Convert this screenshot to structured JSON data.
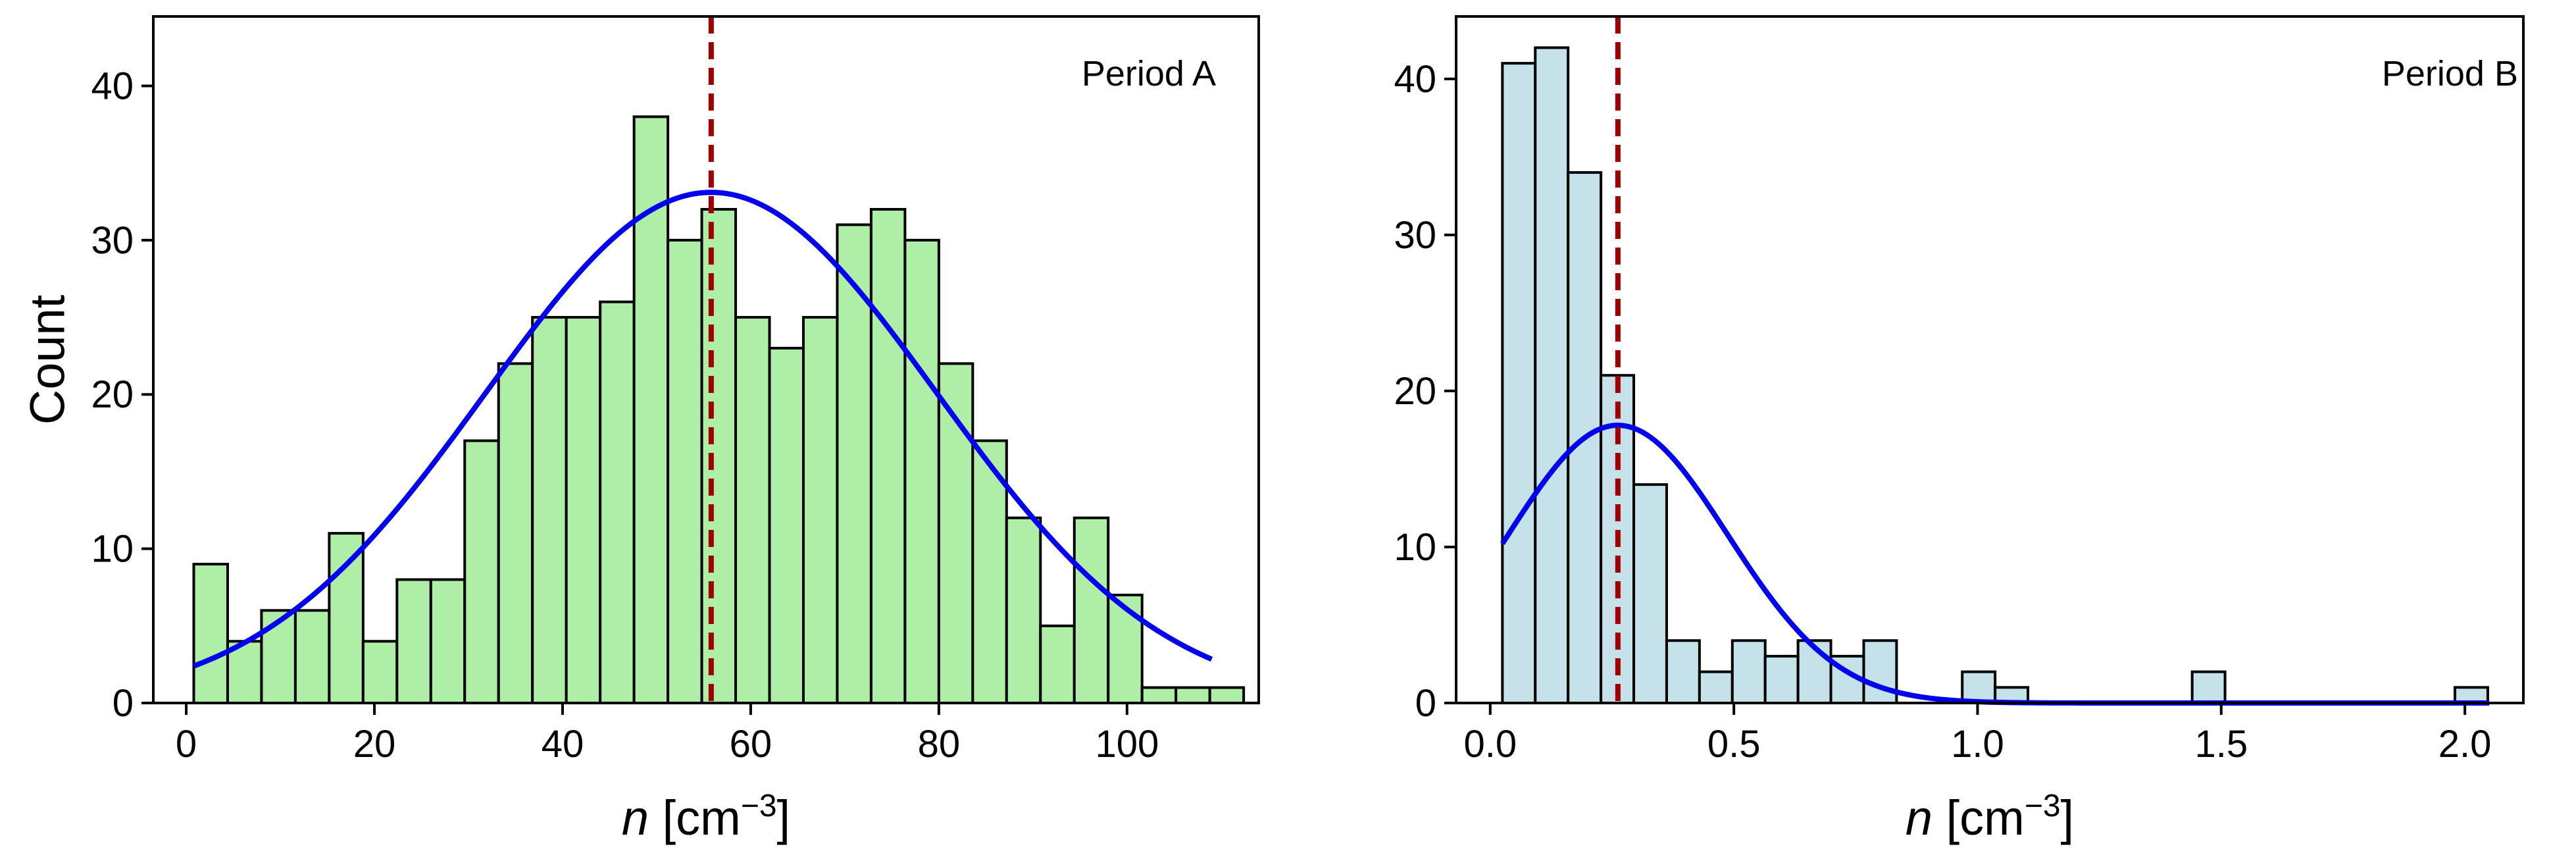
{
  "chart_data": [
    {
      "type": "histogram",
      "title": "Period A",
      "xlabel_var": "n",
      "xlabel_unit_open": " [cm",
      "xlabel_exp": "−3",
      "xlabel_unit_close": "]",
      "ylabel": "Count",
      "xlim": [
        -3.5,
        114
      ],
      "ylim": [
        0,
        44.5
      ],
      "xticks": [
        0,
        20,
        40,
        60,
        80,
        100
      ],
      "xtick_labels": [
        "0",
        "20",
        "40",
        "60",
        "80",
        "100"
      ],
      "yticks": [
        0,
        10,
        20,
        30,
        40
      ],
      "ytick_labels": [
        "0",
        "10",
        "20",
        "30",
        "40"
      ],
      "bin_start": 0.8,
      "bin_width": 3.6,
      "counts": [
        9,
        4,
        6,
        6,
        11,
        4,
        8,
        8,
        17,
        22,
        25,
        25,
        26,
        38,
        30,
        32,
        25,
        23,
        25,
        31,
        32,
        30,
        22,
        17,
        12,
        5,
        12,
        7,
        1,
        1,
        1
      ],
      "bar_color": "#aeeea6",
      "edge_color": "#000000",
      "fit": {
        "type": "gaussian",
        "amplitude": 33.1,
        "mean": 55.8,
        "sigma": 24.0,
        "x_range": [
          0.8,
          109
        ],
        "color": "#0000ee"
      },
      "mean_line": {
        "x": 55.8,
        "color": "#a00000"
      }
    },
    {
      "type": "histogram",
      "title": "Period B",
      "xlabel_var": "n",
      "xlabel_unit_open": " [cm",
      "xlabel_exp": "−3",
      "xlabel_unit_close": "]",
      "ylabel": "",
      "xlim": [
        -0.07,
        2.12
      ],
      "ylim": [
        0,
        44
      ],
      "xticks": [
        0.0,
        0.5,
        1.0,
        1.5,
        2.0
      ],
      "xtick_labels": [
        "0.0",
        "0.5",
        "1.0",
        "1.5",
        "2.0"
      ],
      "yticks": [
        0,
        10,
        20,
        30,
        40
      ],
      "ytick_labels": [
        "0",
        "10",
        "20",
        "30",
        "40"
      ],
      "bin_start": 0.025,
      "bin_width": 0.0674,
      "counts": [
        41,
        42,
        34,
        21,
        14,
        4,
        2,
        4,
        3,
        4,
        3,
        4,
        0,
        0,
        2,
        1,
        0,
        0,
        0,
        0,
        0,
        2,
        0,
        0,
        0,
        0,
        0,
        0,
        0,
        1
      ],
      "bar_color": "#c5e2eb",
      "edge_color": "#000000",
      "fit": {
        "type": "gaussian",
        "amplitude": 17.8,
        "mean": 0.262,
        "sigma": 0.225,
        "x_range": [
          0.025,
          2.05
        ],
        "color": "#0000ee"
      },
      "mean_line": {
        "x": 0.262,
        "color": "#a00000"
      }
    }
  ]
}
